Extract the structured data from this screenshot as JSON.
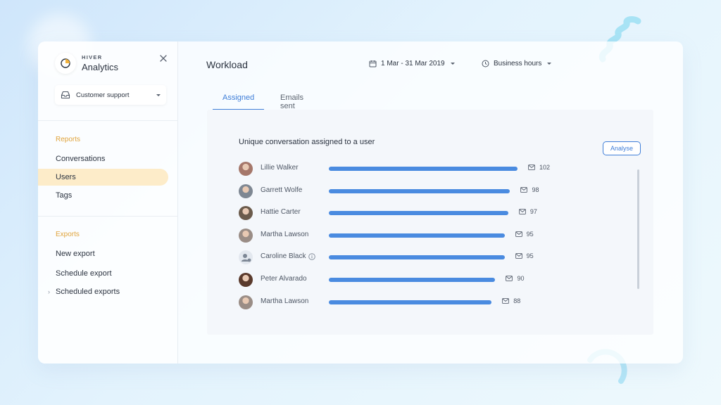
{
  "brand": {
    "kicker": "HIVER",
    "name": "Analytics"
  },
  "inbox": {
    "label": "Customer support"
  },
  "sections": {
    "reports": {
      "title": "Reports",
      "items": [
        {
          "label": "Conversations",
          "active": false
        },
        {
          "label": "Users",
          "active": true
        },
        {
          "label": "Tags",
          "active": false
        }
      ]
    },
    "exports": {
      "title": "Exports",
      "items": [
        {
          "label": "New export"
        },
        {
          "label": "Schedule export"
        },
        {
          "label": "Scheduled exports"
        }
      ]
    }
  },
  "main": {
    "title": "Workload",
    "date_range": "1 Mar - 31 Mar 2019",
    "hours": "Business hours",
    "tabs": [
      {
        "label": "Assigned",
        "active": true
      },
      {
        "label": "Emails sent",
        "active": false
      }
    ]
  },
  "panel": {
    "title": "Unique conversation assigned to a user",
    "analyse_label": "Analyse",
    "max_value": 102,
    "accent_color": "#4a8be0",
    "rows": [
      {
        "name": "Lillie Walker",
        "value": 102,
        "avatar": "#a5776a"
      },
      {
        "name": "Garrett Wolfe",
        "value": 98,
        "avatar": "#7e8792"
      },
      {
        "name": "Hattie Carter",
        "value": 97,
        "avatar": "#6b5b4c"
      },
      {
        "name": "Martha Lawson",
        "value": 95,
        "avatar": "#9a8d86"
      },
      {
        "name": "Caroline Black",
        "value": 95,
        "avatar": "placeholder",
        "info": true
      },
      {
        "name": "Peter Alvarado",
        "value": 90,
        "avatar": "#5a3a2c"
      },
      {
        "name": "Martha Lawson",
        "value": 88,
        "avatar": "#9a8d86"
      }
    ]
  }
}
